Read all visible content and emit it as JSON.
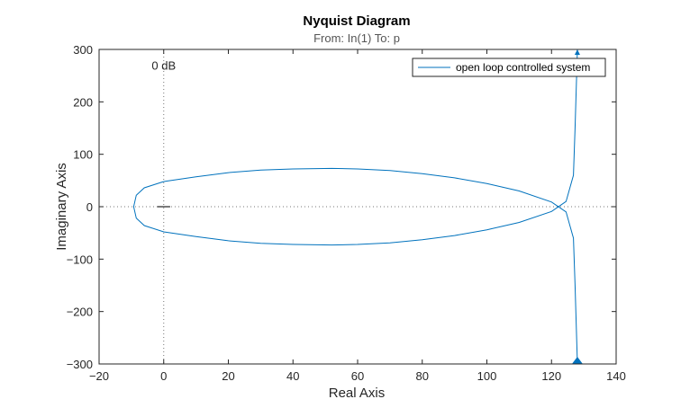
{
  "chart_data": {
    "type": "line",
    "title": "Nyquist Diagram",
    "subtitle": "From: In(1)  To: p",
    "xlabel": "Real Axis",
    "ylabel": "Imaginary Axis",
    "xlim": [
      -20,
      140
    ],
    "ylim": [
      -300,
      300
    ],
    "xticks": [
      -20,
      0,
      20,
      40,
      60,
      80,
      100,
      120,
      140
    ],
    "yticks": [
      -300,
      -200,
      -100,
      0,
      100,
      200,
      300
    ],
    "grid": false,
    "legend": {
      "position": "top-right",
      "entries": [
        "open loop controlled system"
      ]
    },
    "annotations": [
      {
        "text": "0 dB",
        "x": 0,
        "y": 270
      }
    ],
    "reference_lines": {
      "x": 0,
      "y": 0,
      "style": "dotted"
    },
    "series": [
      {
        "name": "open loop controlled system",
        "color": "#0072BD",
        "x": [
          128,
          127.3,
          126.8,
          124.5,
          120,
          110,
          100,
          90,
          80,
          70,
          60,
          52,
          40,
          30,
          20,
          10,
          0,
          -6,
          -8.5,
          -9.3,
          -8.5,
          -6,
          0,
          10,
          20,
          30,
          40,
          52,
          60,
          70,
          80,
          90,
          100,
          110,
          120,
          124.5,
          126.8,
          127.3,
          128
        ],
        "y": [
          -300,
          -150,
          -60,
          -10,
          9,
          30,
          44,
          55,
          63,
          69,
          72,
          73,
          72,
          70,
          65,
          57,
          48,
          36,
          22,
          0,
          -22,
          -36,
          -48,
          -57,
          -65,
          -70,
          -72,
          -73,
          -72,
          -69,
          -63,
          -55,
          -44,
          -30,
          -9,
          10,
          60,
          150,
          300
        ]
      }
    ]
  }
}
